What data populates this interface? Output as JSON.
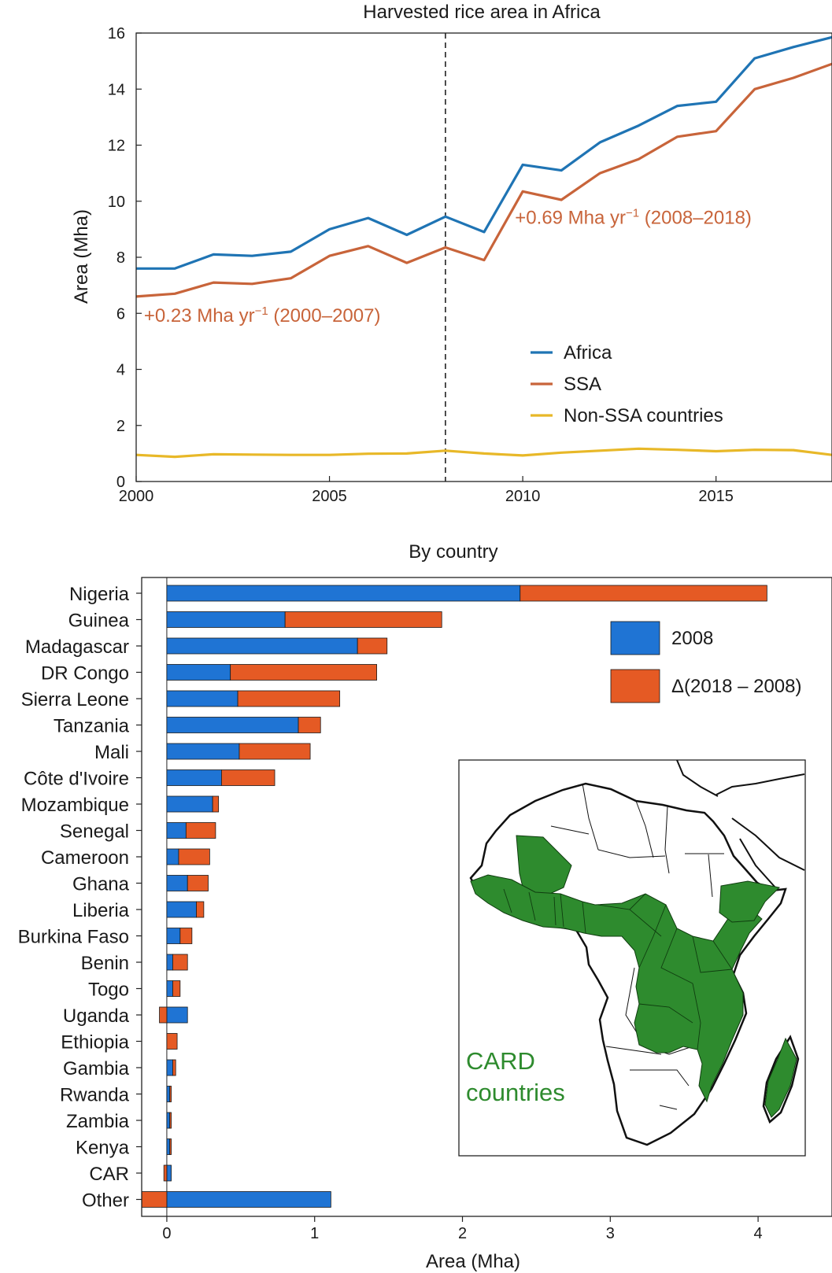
{
  "chart_data": [
    {
      "type": "line",
      "title": "Harvested rice area in Africa",
      "xlabel": "",
      "ylabel": "Area (Mha)",
      "xlim": [
        2000,
        2018
      ],
      "ylim": [
        0,
        16
      ],
      "xticks": [
        2000,
        2005,
        2010,
        2015
      ],
      "yticks": [
        0,
        2,
        4,
        6,
        8,
        10,
        12,
        14,
        16
      ],
      "grid": false,
      "legend_position": "bottom-right",
      "x": [
        2000,
        2001,
        2002,
        2003,
        2004,
        2005,
        2006,
        2007,
        2008,
        2009,
        2010,
        2011,
        2012,
        2013,
        2014,
        2015,
        2016,
        2017,
        2018
      ],
      "series": [
        {
          "name": "Africa",
          "color": "#1f74b4",
          "values": [
            7.6,
            7.6,
            8.1,
            8.05,
            8.2,
            9.0,
            9.4,
            8.8,
            9.45,
            8.9,
            11.3,
            11.1,
            12.1,
            12.7,
            13.4,
            13.55,
            15.1,
            15.5,
            15.85
          ]
        },
        {
          "name": "SSA",
          "color": "#c8643a",
          "values": [
            6.6,
            6.7,
            7.1,
            7.05,
            7.25,
            8.05,
            8.4,
            7.8,
            8.35,
            7.9,
            10.35,
            10.05,
            11.0,
            11.5,
            12.3,
            12.5,
            14.0,
            14.4,
            14.9
          ]
        },
        {
          "name": "Non-SSA countries",
          "color": "#e8b828",
          "values": [
            0.95,
            0.88,
            0.97,
            0.96,
            0.95,
            0.95,
            0.99,
            1.0,
            1.1,
            1.0,
            0.93,
            1.03,
            1.1,
            1.17,
            1.13,
            1.08,
            1.13,
            1.12,
            0.95
          ]
        }
      ],
      "vline_x": 2008,
      "annotations": [
        {
          "prefix": "+0.23 Mha yr",
          "sup": "−1",
          "suffix": " (2000–2007)",
          "x": 2000.2,
          "y": 5.7
        },
        {
          "prefix": "+0.69 Mha yr",
          "sup": "−1",
          "suffix": " (2008–2018)",
          "x": 2009.8,
          "y": 9.2
        }
      ]
    },
    {
      "type": "bar",
      "orientation": "horizontal",
      "stacked": true,
      "title": "By country",
      "xlabel": "Area (Mha)",
      "ylabel": "",
      "xlim": [
        -0.17,
        4.5
      ],
      "xticks": [
        0,
        1,
        2,
        3,
        4
      ],
      "legend_position": "top-right",
      "categories": [
        "Nigeria",
        "Guinea",
        "Madagascar",
        "DR Congo",
        "Sierra Leone",
        "Tanzania",
        "Mali",
        "Côte d'Ivoire",
        "Mozambique",
        "Senegal",
        "Cameroon",
        "Ghana",
        "Liberia",
        "Burkina Faso",
        "Benin",
        "Togo",
        "Uganda",
        "Ethiopia",
        "Gambia",
        "Rwanda",
        "Zambia",
        "Kenya",
        "CAR",
        "Other"
      ],
      "series": [
        {
          "name": "2008",
          "color": "#1f74d4",
          "values": [
            2.39,
            0.8,
            1.29,
            0.43,
            0.48,
            0.89,
            0.49,
            0.37,
            0.31,
            0.13,
            0.08,
            0.14,
            0.2,
            0.09,
            0.04,
            0.04,
            0.14,
            0.0,
            0.04,
            0.02,
            0.02,
            0.02,
            0.03,
            1.11
          ]
        },
        {
          "name": "Δ(2018 – 2008)",
          "color": "#e55a24",
          "values": [
            1.67,
            1.06,
            0.2,
            0.99,
            0.69,
            0.15,
            0.48,
            0.36,
            0.04,
            0.2,
            0.21,
            0.14,
            0.05,
            0.08,
            0.1,
            0.05,
            -0.05,
            0.07,
            0.02,
            0.01,
            0.01,
            0.01,
            -0.02,
            -0.17
          ]
        }
      ]
    }
  ],
  "map_inset": {
    "label_line1": "CARD",
    "label_line2": "countries",
    "highlight_color": "#2e8b2e"
  }
}
